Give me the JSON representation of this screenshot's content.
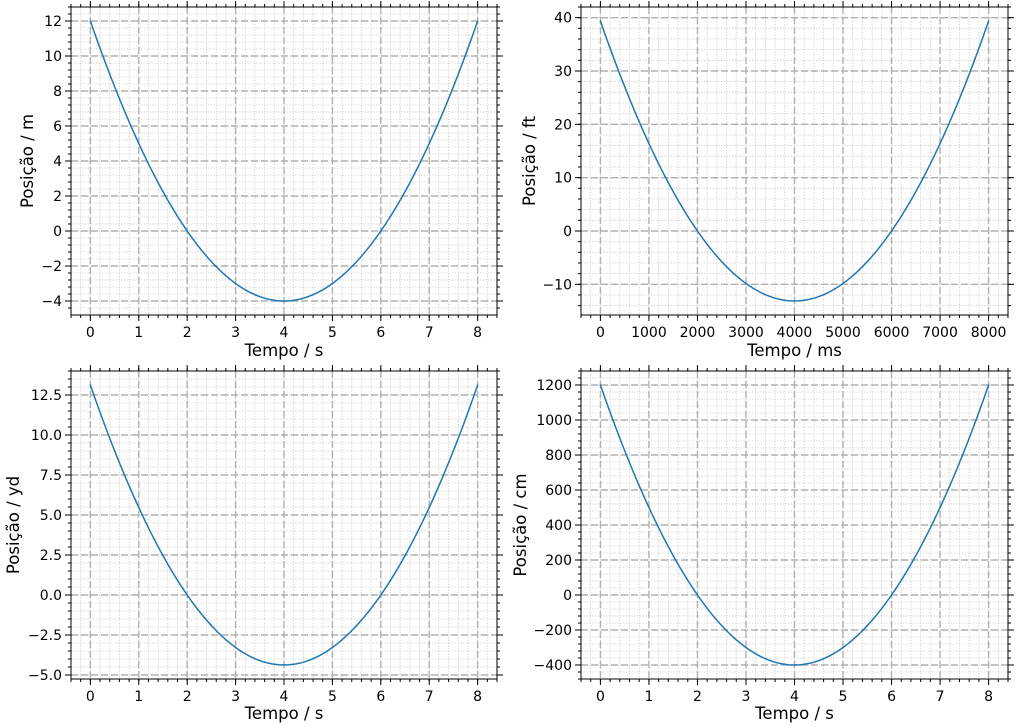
{
  "chart_data": [
    {
      "type": "line",
      "xlabel": "Tempo / s",
      "ylabel": "Posição / m",
      "xlim": [
        -0.4,
        8.4
      ],
      "ylim": [
        -4.8,
        12.8
      ],
      "xticks": [
        0,
        1,
        2,
        3,
        4,
        5,
        6,
        7,
        8
      ],
      "xticklabels": [
        "0",
        "1",
        "2",
        "3",
        "4",
        "5",
        "6",
        "7",
        "8"
      ],
      "xminor_step": 0.2,
      "yticks": [
        -4,
        -2,
        0,
        2,
        4,
        6,
        8,
        10,
        12
      ],
      "yticklabels": [
        "−4",
        "−2",
        "0",
        "2",
        "4",
        "6",
        "8",
        "10",
        "12"
      ],
      "yminor_step": 0.4,
      "grid": true,
      "series": [
        {
          "name": "posição",
          "color": "#1f77b4",
          "x": [
            0,
            0.5,
            1,
            1.5,
            2,
            2.5,
            3,
            3.5,
            4,
            4.5,
            5,
            5.5,
            6,
            6.5,
            7,
            7.5,
            8
          ],
          "y": [
            12,
            8.25,
            5,
            2.25,
            0,
            -1.75,
            -3,
            -3.75,
            -4,
            -3.75,
            -3,
            -1.75,
            0,
            2.25,
            5,
            8.25,
            12
          ]
        }
      ]
    },
    {
      "type": "line",
      "xlabel": "Tempo / ms",
      "ylabel": "Posição / ft",
      "xlim": [
        -400,
        8400
      ],
      "ylim": [
        -15.75,
        42
      ],
      "xticks": [
        0,
        1000,
        2000,
        3000,
        4000,
        5000,
        6000,
        7000,
        8000
      ],
      "xticklabels": [
        "0",
        "1000",
        "2000",
        "3000",
        "4000",
        "5000",
        "6000",
        "7000",
        "8000"
      ],
      "xminor_step": 200,
      "yticks": [
        -10,
        0,
        10,
        20,
        30,
        40
      ],
      "yticklabels": [
        "−10",
        "0",
        "10",
        "20",
        "30",
        "40"
      ],
      "yminor_step": 2,
      "grid": true,
      "series": [
        {
          "name": "posição",
          "color": "#1f77b4",
          "x": [
            0,
            500,
            1000,
            1500,
            2000,
            2500,
            3000,
            3500,
            4000,
            4500,
            5000,
            5500,
            6000,
            6500,
            7000,
            7500,
            8000
          ],
          "y": [
            39.37,
            27.07,
            16.4,
            7.38,
            0,
            -5.74,
            -9.84,
            -12.3,
            -13.12,
            -12.3,
            -9.84,
            -5.74,
            0,
            7.38,
            16.4,
            27.07,
            39.37
          ]
        }
      ]
    },
    {
      "type": "line",
      "xlabel": "Tempo / s",
      "ylabel": "Posição / yd",
      "xlim": [
        -0.4,
        8.4
      ],
      "ylim": [
        -5.25,
        14.0
      ],
      "xticks": [
        0,
        1,
        2,
        3,
        4,
        5,
        6,
        7,
        8
      ],
      "xticklabels": [
        "0",
        "1",
        "2",
        "3",
        "4",
        "5",
        "6",
        "7",
        "8"
      ],
      "xminor_step": 0.2,
      "yticks": [
        -5,
        -2.5,
        0,
        2.5,
        5,
        7.5,
        10,
        12.5
      ],
      "yticklabels": [
        "−5.0",
        "−2.5",
        "0.0",
        "2.5",
        "5.0",
        "7.5",
        "10.0",
        "12.5"
      ],
      "yminor_step": 0.5,
      "grid": true,
      "series": [
        {
          "name": "posição",
          "color": "#1f77b4",
          "x": [
            0,
            0.5,
            1,
            1.5,
            2,
            2.5,
            3,
            3.5,
            4,
            4.5,
            5,
            5.5,
            6,
            6.5,
            7,
            7.5,
            8
          ],
          "y": [
            13.12,
            9.02,
            5.47,
            2.46,
            0,
            -1.91,
            -3.28,
            -4.1,
            -4.37,
            -4.1,
            -3.28,
            -1.91,
            0,
            2.46,
            5.47,
            9.02,
            13.12
          ]
        }
      ]
    },
    {
      "type": "line",
      "xlabel": "Tempo / s",
      "ylabel": "Posição / cm",
      "xlim": [
        -0.4,
        8.4
      ],
      "ylim": [
        -480,
        1280
      ],
      "xticks": [
        0,
        1,
        2,
        3,
        4,
        5,
        6,
        7,
        8
      ],
      "xticklabels": [
        "0",
        "1",
        "2",
        "3",
        "4",
        "5",
        "6",
        "7",
        "8"
      ],
      "xminor_step": 0.2,
      "yticks": [
        -400,
        -200,
        0,
        200,
        400,
        600,
        800,
        1000,
        1200
      ],
      "yticklabels": [
        "−400",
        "−200",
        "0",
        "200",
        "400",
        "600",
        "800",
        "1000",
        "1200"
      ],
      "yminor_step": 40,
      "grid": true,
      "series": [
        {
          "name": "posição",
          "color": "#1f77b4",
          "x": [
            0,
            0.5,
            1,
            1.5,
            2,
            2.5,
            3,
            3.5,
            4,
            4.5,
            5,
            5.5,
            6,
            6.5,
            7,
            7.5,
            8
          ],
          "y": [
            1200,
            825,
            500,
            225,
            0,
            -175,
            -300,
            -375,
            -400,
            -375,
            -300,
            -175,
            0,
            225,
            500,
            825,
            1200
          ]
        }
      ]
    }
  ]
}
